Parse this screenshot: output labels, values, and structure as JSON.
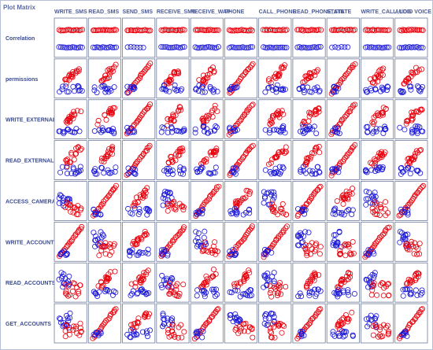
{
  "panel": {
    "title": "Plot Matrix"
  },
  "chart_data": {
    "type": "scatter",
    "title": "Plot Matrix",
    "columns": [
      "WRITE_SMS",
      "READ_SMS",
      "SEND_SMS",
      "RECEIVE_SMS",
      "RECEIVE_WAP_PUSH",
      "PHONE",
      "CALL_PHONE",
      "READ_PHONE_STATE",
      "STATE",
      "WRITE_CALL_LOG",
      "AUDIO VOICE"
    ],
    "rows": [
      "Correlation",
      "permissions",
      "WRITE_EXTERNAL",
      "READ_EXTERNAL",
      "ACCESS_CAMERA",
      "WRITE_ACCOUNT",
      "READ_ACCOUNTS",
      "GET_ACCOUNTS"
    ],
    "column_labels_as_shown": [
      "WRITE_SMS",
      "READ_SMS",
      "SEND_SMS",
      "RECEIVE_SMS",
      "RECEIVE_WAP",
      "PHONE",
      "CALL_PHONE",
      "READ_PHONE_STATE",
      "STATE",
      "WRITE_CALL_LOG",
      "AUDIO VOICE"
    ],
    "series": [
      {
        "color": "#e8000c"
      },
      {
        "color": "#1a16d8"
      }
    ],
    "marker": "open-circle",
    "pattern": [
      [
        "band",
        "band",
        "band-red",
        "band",
        "band",
        "band",
        "band",
        "band",
        "band-red",
        "band",
        "band"
      ],
      [
        "cloud",
        "cloud",
        "diag-up",
        "cloud",
        "cloud",
        "diag-up",
        "cloud",
        "cloud",
        "diag-up",
        "cloud",
        "cloud"
      ],
      [
        "cloud",
        "cloud",
        "diag-up",
        "cloud",
        "cloud",
        "diag-up",
        "cloud",
        "cloud",
        "diag-up",
        "cloud",
        "cloud"
      ],
      [
        "cloud",
        "cloud",
        "diag-up",
        "cloud",
        "cloud",
        "diag-up",
        "cloud",
        "cloud",
        "diag-up",
        "cloud",
        "cloud"
      ],
      [
        "split",
        "diag-up",
        "cloud",
        "split",
        "diag-up",
        "cloud",
        "split",
        "diag-up",
        "cloud",
        "split",
        "diag-up"
      ],
      [
        "diag-up",
        "split",
        "cloud",
        "diag-up",
        "split",
        "diag-up",
        "diag-up",
        "split",
        "split",
        "diag-up",
        "split"
      ],
      [
        "split",
        "cloud",
        "cloud",
        "split",
        "cloud",
        "cloud",
        "split",
        "cloud",
        "cloud",
        "split",
        "cloud"
      ],
      [
        "split",
        "diag-up",
        "cloud",
        "split",
        "diag-up",
        "split",
        "split",
        "diag-up",
        "cloud",
        "split",
        "diag-up"
      ]
    ],
    "grid": false,
    "legend": "none"
  }
}
